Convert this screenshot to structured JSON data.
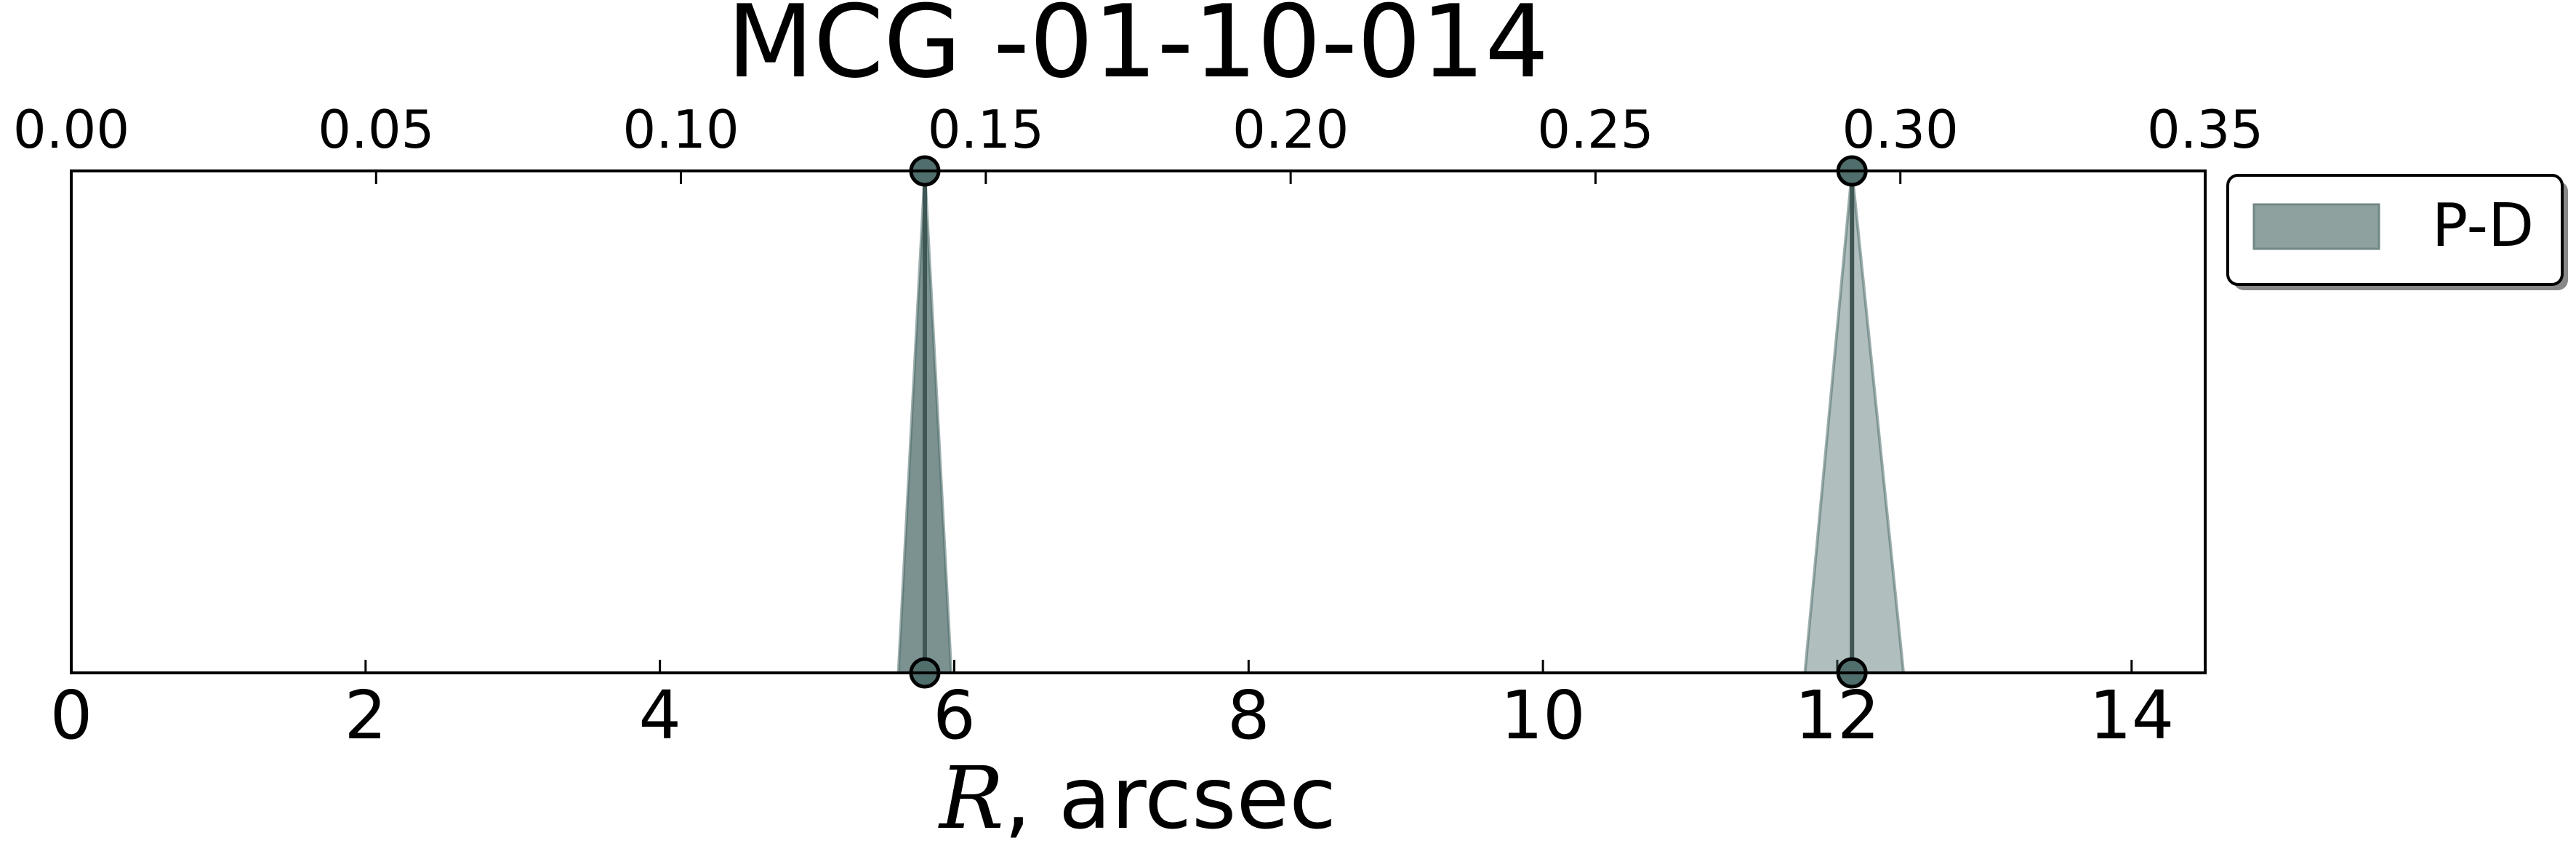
{
  "chart_data": {
    "type": "area",
    "title": "MCG -01-10-014",
    "xlabel": {
      "variable": "R",
      "rest": ", arcsec"
    },
    "x_bottom": {
      "range": [
        0,
        14.5
      ],
      "ticks": [
        0,
        2,
        4,
        6,
        8,
        10,
        12,
        14
      ],
      "tick_labels": [
        "0",
        "2",
        "4",
        "6",
        "8",
        "10",
        "12",
        "14"
      ]
    },
    "x_top": {
      "range": [
        0,
        0.35
      ],
      "ticks": [
        0.0,
        0.05,
        0.1,
        0.15,
        0.2,
        0.25,
        0.3,
        0.35
      ],
      "tick_labels": [
        "0.00",
        "0.05",
        "0.10",
        "0.15",
        "0.20",
        "0.25",
        "0.30",
        "0.35"
      ]
    },
    "grid": false,
    "legend": {
      "placement": "outside-right-top",
      "entries": [
        {
          "label": "P-D",
          "color": "#4f6e6c"
        }
      ]
    },
    "series": [
      {
        "name": "P-D",
        "color": "#4f6e6c",
        "segments": [
          {
            "center": 5.8,
            "lower": 5.62,
            "upper": 5.98,
            "opacity": 0.75
          },
          {
            "center": 12.1,
            "lower": 11.78,
            "upper": 12.45,
            "opacity": 0.45
          }
        ]
      }
    ]
  }
}
